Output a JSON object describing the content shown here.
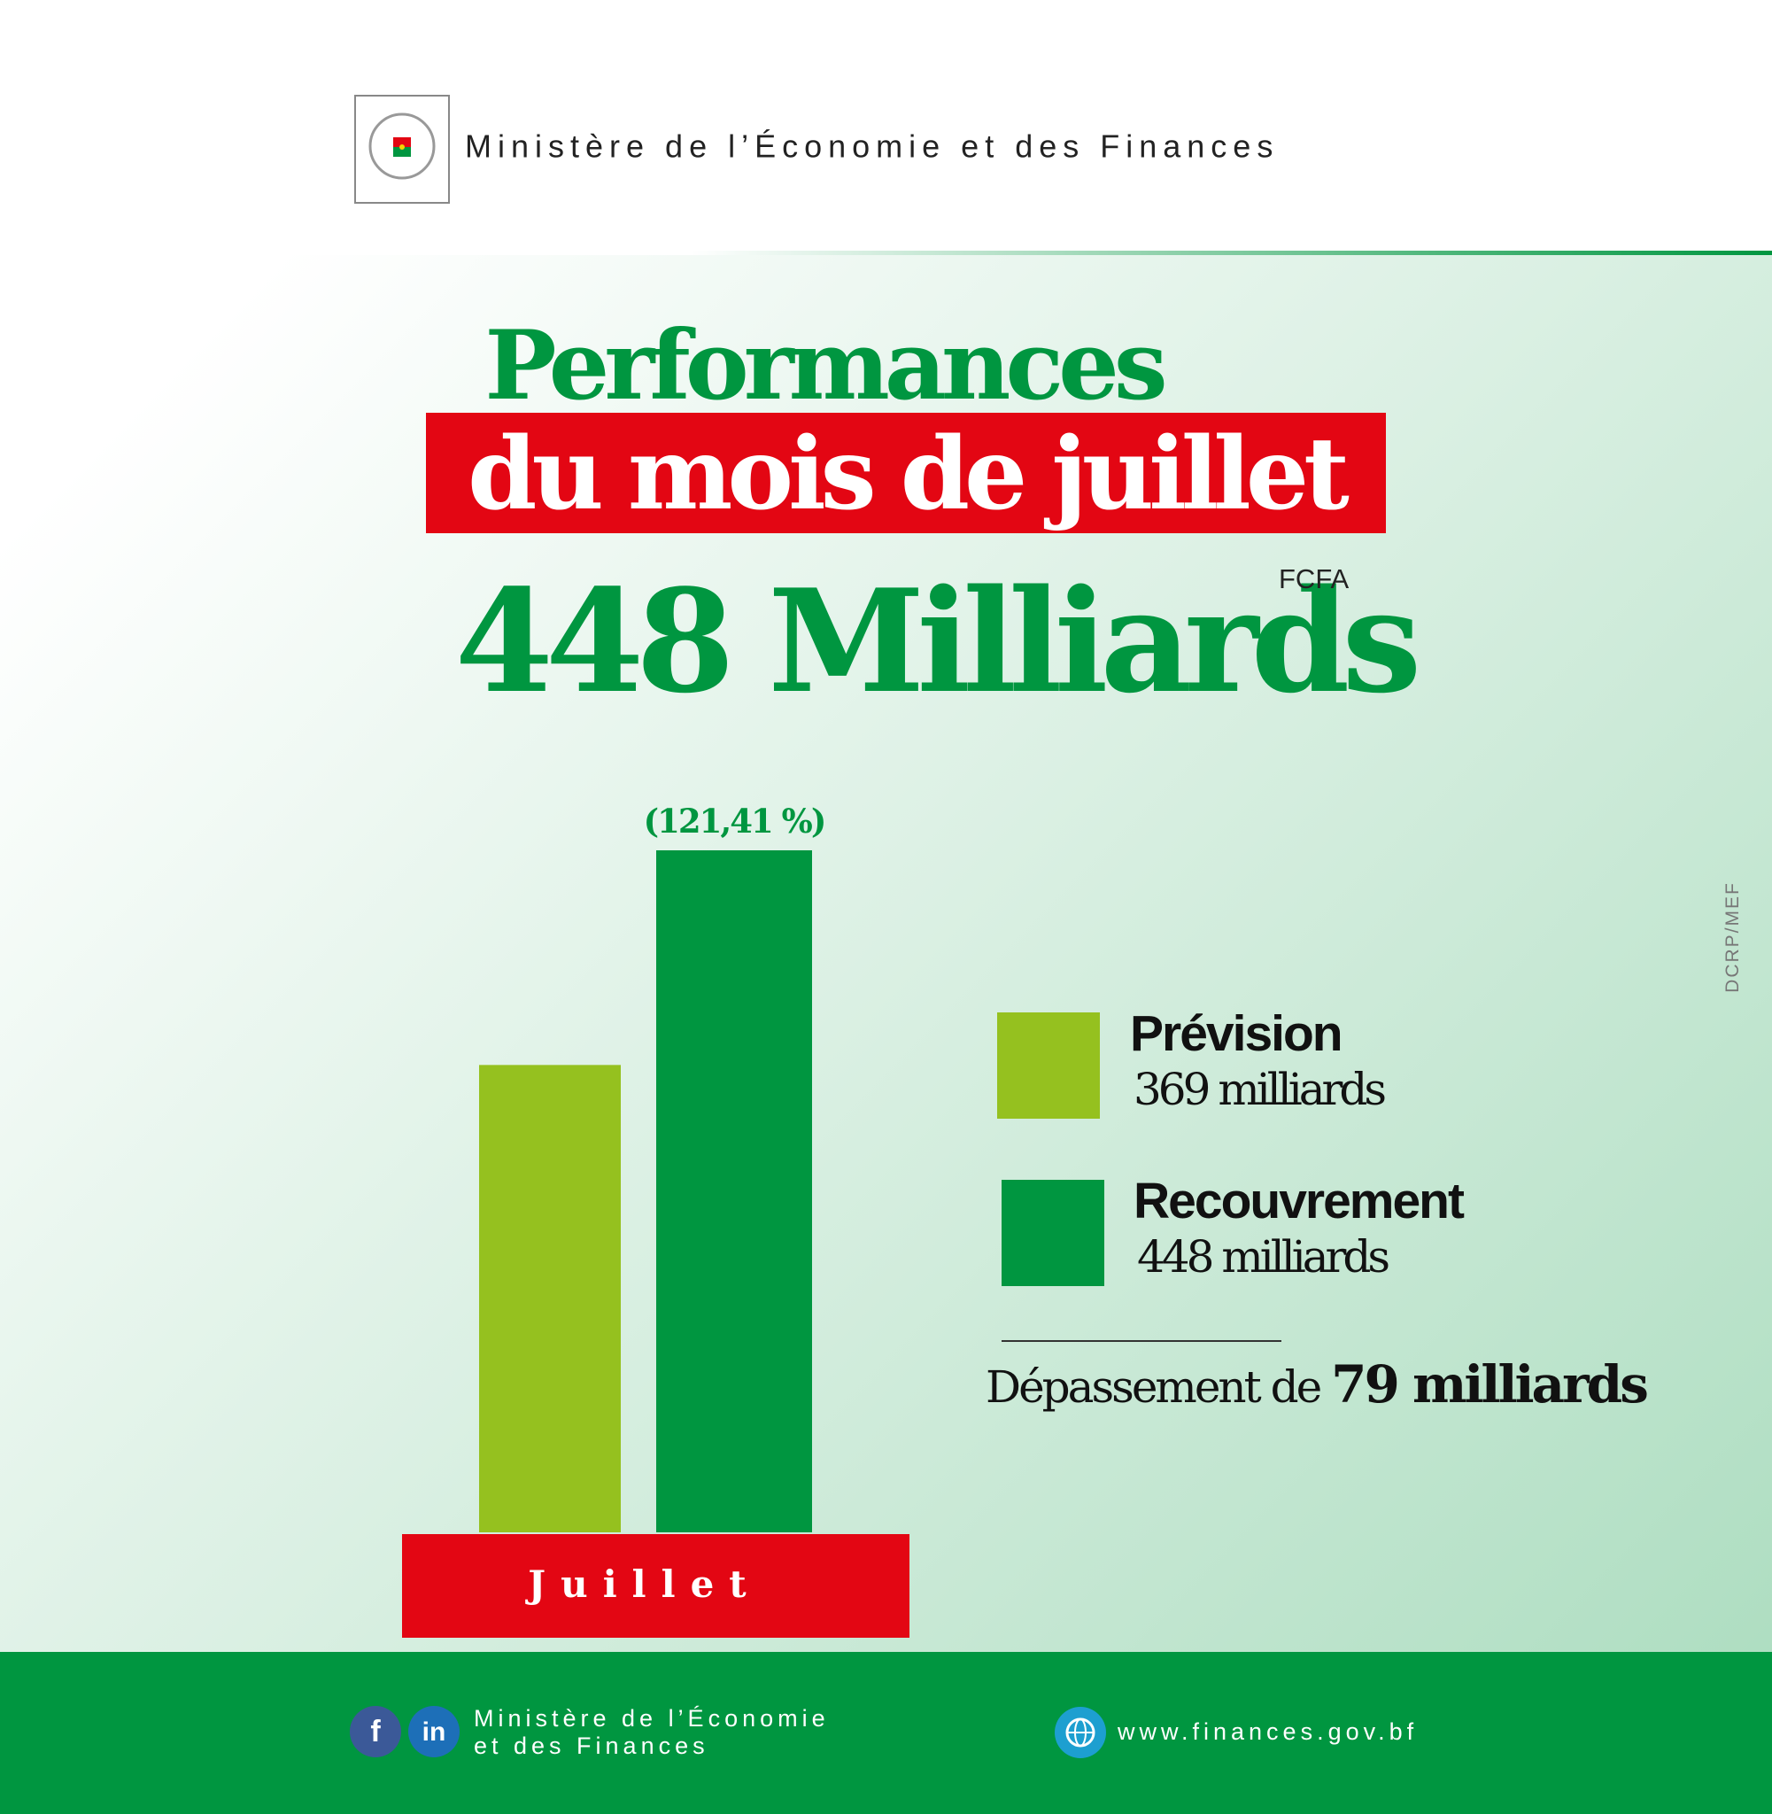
{
  "header": {
    "title": "Ministère de l’Économie et des Finances"
  },
  "chart_data": {
    "type": "bar",
    "title": "Performances",
    "subtitle": "du mois de juillet",
    "headline": "448 Milliards",
    "headline_unit": "FCFA",
    "categories": [
      "Juillet"
    ],
    "series": [
      {
        "name": "Prévision",
        "color": "#95c11f",
        "values": [
          369
        ],
        "value_labels": [
          "369 milliards"
        ]
      },
      {
        "name": "Recouvrement",
        "color": "#009640",
        "values": [
          448
        ],
        "value_labels": [
          "448 milliards"
        ]
      }
    ],
    "ylim": [
      197,
      448
    ],
    "bar_annotation": "(121,41 %)",
    "excess_label": "Dépassement de",
    "excess_value": "79 milliards",
    "category_color": "#e30613"
  },
  "credit": "DCRP/MEF",
  "footer": {
    "ministry_lines": [
      "Ministère de l’Économie",
      "et des Finances"
    ],
    "website": "www.finances.gov.bf"
  }
}
